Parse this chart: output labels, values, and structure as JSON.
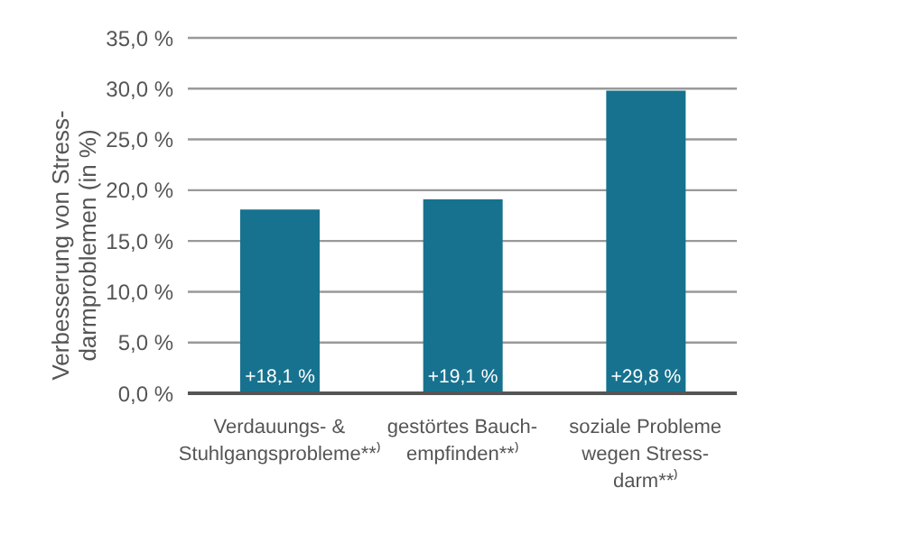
{
  "chart_data": {
    "type": "bar",
    "ylabel": "Verbesserung von Stress-\ndarmproblemen (in %)",
    "categories": [
      "Verdauungs- &\nStuhlgangsprobleme**⁾",
      "gestörtes Bauch-\nempfinden**⁾",
      "soziale Probleme\nwegen Stress-\ndarm**⁾"
    ],
    "values": [
      18.1,
      19.1,
      29.8
    ],
    "value_labels": [
      "+18,1 %",
      "+19,1 %",
      "+29,8 %"
    ],
    "color": "#17728f",
    "ylim": [
      0,
      35
    ],
    "yticks": [
      {
        "value": 0,
        "label": "0,0 %"
      },
      {
        "value": 5,
        "label": "5,0 %"
      },
      {
        "value": 10,
        "label": "10,0 %"
      },
      {
        "value": 15,
        "label": "15,0 %"
      },
      {
        "value": 20,
        "label": "20,0 %"
      },
      {
        "value": 25,
        "label": "25,0 %"
      },
      {
        "value": 30,
        "label": "30,0 %"
      },
      {
        "value": 35,
        "label": "35,0 %"
      }
    ],
    "grid": "y"
  }
}
